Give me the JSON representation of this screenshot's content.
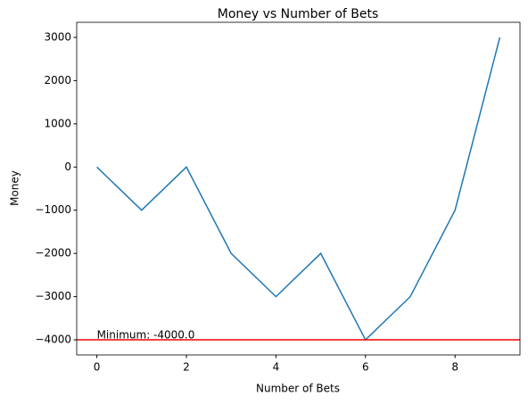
{
  "chart_data": {
    "type": "line",
    "title": "Money vs Number of Bets",
    "x_label": "Number of Bets",
    "y_label": "Money",
    "x": [
      0,
      1,
      2,
      3,
      4,
      5,
      6,
      7,
      8,
      9
    ],
    "series": [
      {
        "name": "Money",
        "color": "#1f77b4",
        "values": [
          0,
          -1000,
          0,
          -2000,
          -3000,
          -2000,
          -4000,
          -3000,
          -1000,
          3000
        ]
      }
    ],
    "xlim": [
      -0.45,
      9.45
    ],
    "xticks": [
      0,
      2,
      4,
      6,
      8
    ],
    "ylim": [
      -4350,
      3350
    ],
    "yticks": [
      {
        "value": -4000,
        "label": "−4000"
      },
      {
        "value": -3000,
        "label": "−3000"
      },
      {
        "value": -2000,
        "label": "−2000"
      },
      {
        "value": -1000,
        "label": "−1000"
      },
      0,
      1000,
      2000,
      3000
    ],
    "hline": {
      "value": -4000,
      "color": "#ff0000",
      "label": "Minimum: -4000.0"
    },
    "grid": false
  }
}
